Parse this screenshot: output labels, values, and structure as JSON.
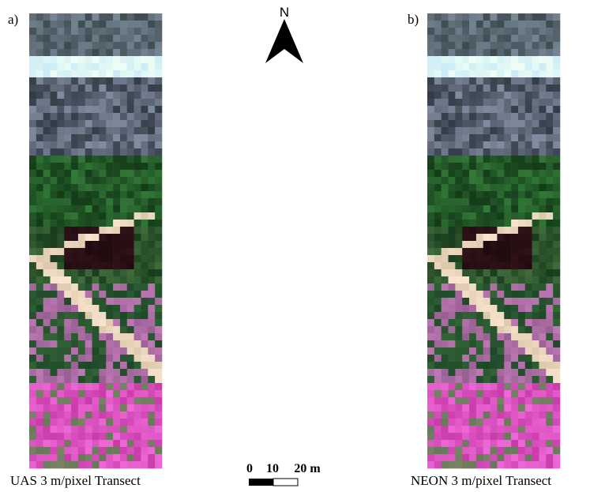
{
  "panel_a": {
    "label": "a)",
    "caption": "UAS 3 m/pixel Transect"
  },
  "panel_b": {
    "label": "b)",
    "caption": "NEON 3 m/pixel Transect"
  },
  "north_arrow": {
    "label": "N"
  },
  "scale_bar": {
    "labels": [
      "0",
      "10",
      "20 m"
    ]
  }
}
